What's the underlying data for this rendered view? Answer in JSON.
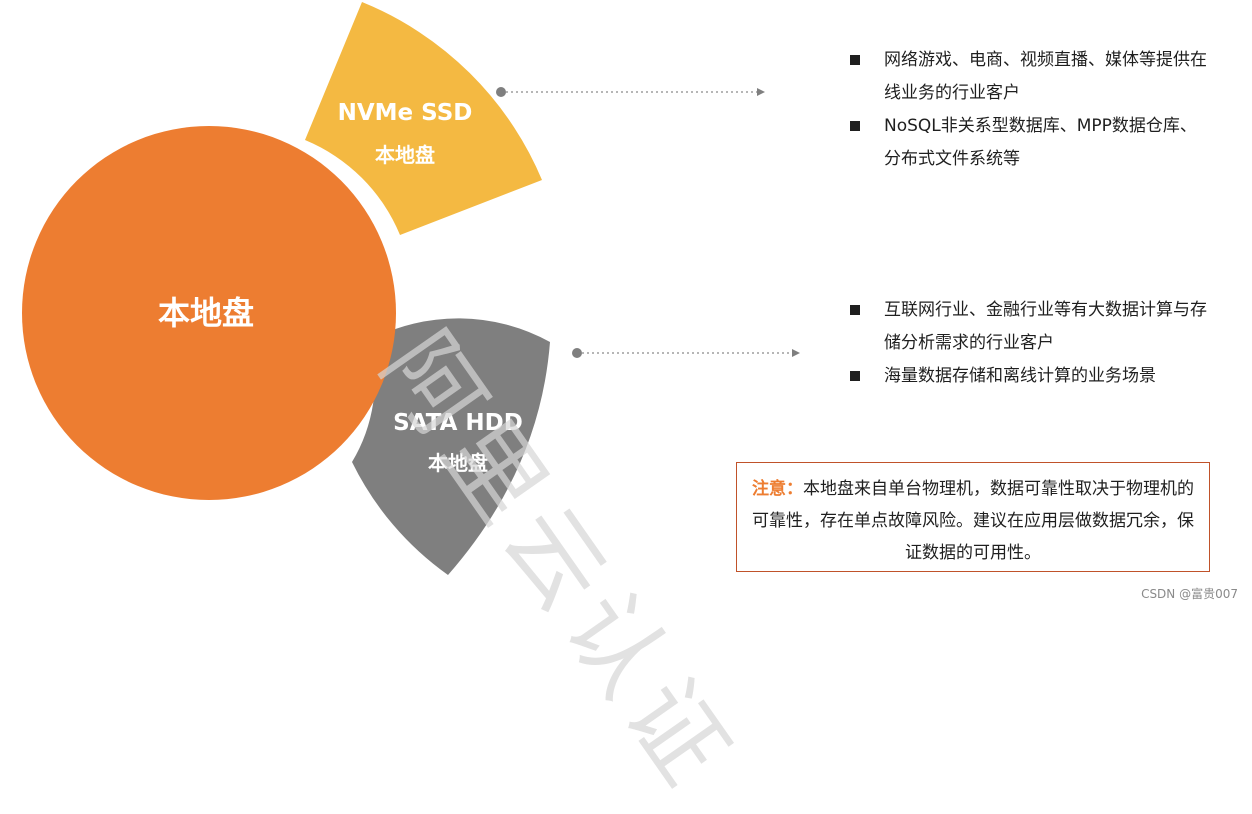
{
  "center": {
    "label": "本地盘",
    "color": "#ed7d31"
  },
  "nvme": {
    "title": "NVMe SSD",
    "subtitle": "本地盘",
    "color": "#f4b942"
  },
  "sata": {
    "title": "SATA HDD",
    "subtitle": "本地盘",
    "color": "#7f7f7f"
  },
  "nvme_bullets": [
    "网络游戏、电商、视频直播、媒体等提供在线业务的行业客户",
    "NoSQL非关系型数据库、MPP数据仓库、分布式文件系统等"
  ],
  "sata_bullets": [
    "互联网行业、金融行业等有大数据计算与存储分析需求的行业客户",
    "海量数据存储和离线计算的业务场景"
  ],
  "note": {
    "label": "注意：",
    "text": "本地盘来自单台物理机，数据可靠性取决于物理机的可靠性，存在单点故障风险。建议在应用层做数据冗余，保证数据的可用性。"
  },
  "watermark": "阿里云认证",
  "credit": "CSDN @富贵007"
}
